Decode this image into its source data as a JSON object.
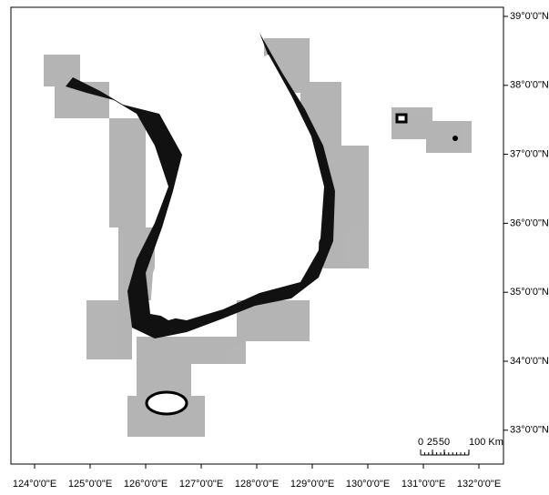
{
  "longitude_labels": [
    "124°0'0\"E",
    "125°0'0\"E",
    "126°0'0\"E",
    "127°0'0\"E",
    "128°0'0\"E",
    "129°0'0\"E",
    "130°0'0\"E",
    "131°0'0\"E",
    "132°0'0\"E"
  ],
  "latitude_labels": [
    "39°0'0\"N",
    "38°0'0\"N",
    "37°0'0\"N",
    "36°0'0\"N",
    "35°0'0\"N",
    "34°0'0\"N",
    "33°0'0\"N"
  ],
  "scale_bar": {
    "labels": [
      "0",
      "25",
      "50",
      "100 Km"
    ]
  }
}
